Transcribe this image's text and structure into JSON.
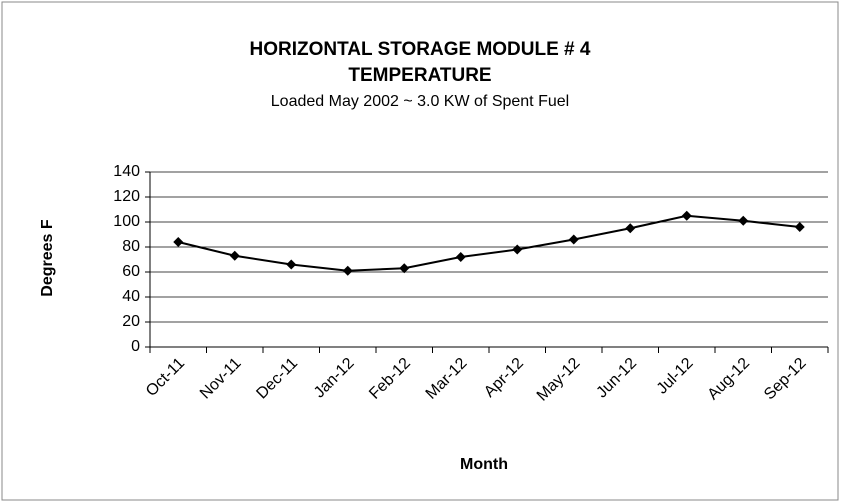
{
  "chart_data": {
    "type": "line",
    "title": [
      "HORIZONTAL STORAGE MODULE # 4",
      "TEMPERATURE"
    ],
    "subtitle": "Loaded May 2002 ~ 3.0 KW of Spent Fuel",
    "y_label": "Degrees F",
    "x_label": "Month",
    "categories": [
      "Oct-11",
      "Nov-11",
      "Dec-11",
      "Jan-12",
      "Feb-12",
      "Mar-12",
      "Apr-12",
      "May-12",
      "Jun-12",
      "Jul-12",
      "Aug-12",
      "Sep-12"
    ],
    "values": [
      84,
      73,
      66,
      61,
      63,
      72,
      78,
      86,
      95,
      105,
      101,
      96
    ],
    "color": "#000000",
    "ylim": [
      0,
      140
    ],
    "yticks": [
      0,
      20,
      40,
      60,
      80,
      100,
      120,
      140
    ],
    "grid": true
  }
}
